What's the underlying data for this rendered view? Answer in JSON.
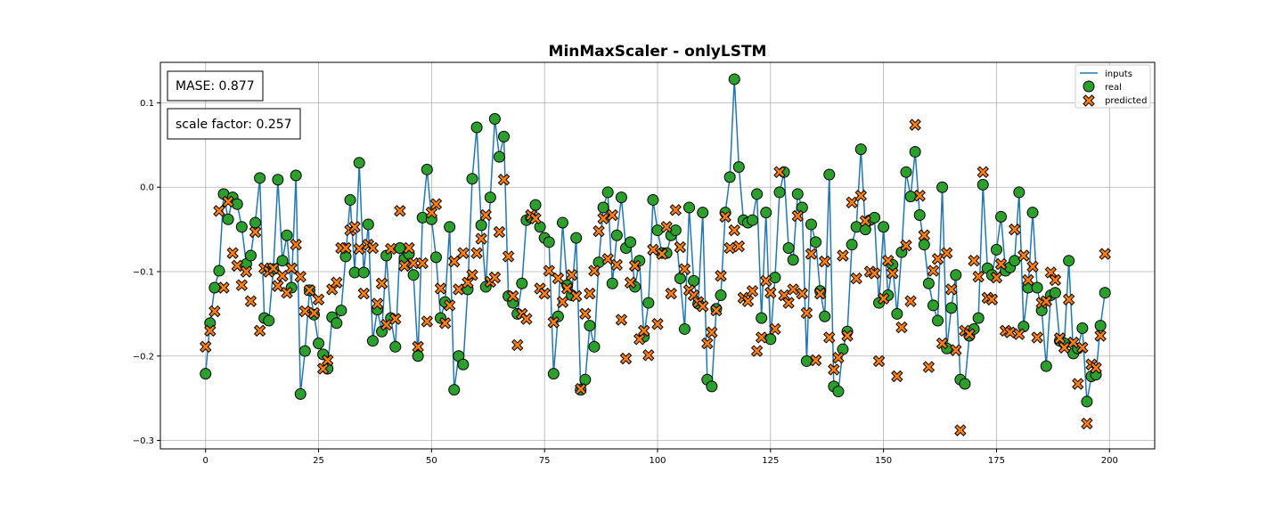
{
  "chart_data": {
    "type": "line",
    "title": "MinMaxScaler - onlyLSTM",
    "xlabel": "",
    "ylabel": "",
    "xlim": [
      -10,
      210
    ],
    "ylim": [
      -0.31,
      0.148
    ],
    "xticks": [
      0,
      25,
      50,
      75,
      100,
      125,
      150,
      175,
      200
    ],
    "yticks": [
      -0.3,
      -0.2,
      -0.1,
      0.0,
      0.1
    ],
    "xtick_labels": [
      "0",
      "25",
      "50",
      "75",
      "100",
      "125",
      "150",
      "175",
      "200"
    ],
    "ytick_labels": [
      "−0.3",
      "−0.2",
      "−0.1",
      "0.0",
      "0.1"
    ],
    "grid": true,
    "legend_position": "top-right",
    "annotations": [
      {
        "text": "MASE: 0.877"
      },
      {
        "text": "scale factor: 0.257"
      }
    ],
    "series": [
      {
        "name": "inputs",
        "kind": "line",
        "color": "#1f77b4",
        "values": [
          -0.221,
          -0.161,
          -0.119,
          -0.099,
          -0.008,
          -0.038,
          -0.012,
          -0.02,
          -0.047,
          -0.091,
          -0.081,
          -0.042,
          0.011,
          -0.155,
          -0.158,
          -0.097,
          0.009,
          -0.087,
          -0.057,
          -0.119,
          0.014,
          -0.245,
          -0.194,
          -0.122,
          -0.151,
          -0.185,
          -0.198,
          -0.215,
          -0.154,
          -0.161,
          -0.146,
          -0.082,
          -0.015,
          -0.101,
          0.029,
          -0.101,
          -0.044,
          -0.182,
          -0.145,
          -0.171,
          -0.081,
          -0.155,
          -0.189,
          -0.072,
          -0.085,
          -0.079,
          -0.104,
          -0.2,
          -0.036,
          0.021,
          -0.038,
          -0.083,
          -0.155,
          -0.136,
          -0.047,
          -0.24,
          -0.2,
          -0.21,
          -0.121,
          0.01,
          0.071,
          -0.045,
          -0.118,
          -0.012,
          0.081,
          0.036,
          0.06,
          -0.129,
          -0.137,
          -0.15,
          -0.114,
          -0.039,
          -0.036,
          -0.021,
          -0.047,
          -0.06,
          -0.065,
          -0.221,
          -0.153,
          -0.042,
          -0.116,
          -0.128,
          -0.06,
          -0.24,
          -0.228,
          -0.164,
          -0.189,
          -0.089,
          -0.024,
          -0.006,
          -0.114,
          -0.057,
          -0.012,
          -0.072,
          -0.065,
          -0.118,
          -0.087,
          -0.177,
          -0.137,
          -0.015,
          -0.051,
          -0.078,
          -0.078,
          -0.057,
          -0.051,
          -0.108,
          -0.168,
          -0.024,
          -0.111,
          -0.138,
          -0.03,
          -0.228,
          -0.236,
          -0.144,
          -0.128,
          -0.03,
          0.012,
          0.128,
          0.024,
          -0.039,
          -0.042,
          -0.039,
          -0.008,
          -0.155,
          -0.03,
          -0.18,
          -0.107,
          -0.006,
          0.018,
          -0.072,
          -0.086,
          -0.008,
          -0.024,
          -0.206,
          -0.044,
          -0.065,
          -0.123,
          -0.153,
          0.015,
          -0.236,
          -0.242,
          -0.192,
          -0.171,
          -0.068,
          -0.047,
          0.045,
          -0.05,
          -0.039,
          -0.036,
          -0.137,
          -0.047,
          -0.128,
          -0.092,
          -0.15,
          -0.077,
          0.018,
          -0.011,
          0.042,
          -0.033,
          -0.068,
          -0.114,
          -0.14,
          -0.158,
          0.0,
          -0.191,
          -0.143,
          -0.104,
          -0.228,
          -0.233,
          -0.176,
          -0.168,
          -0.155,
          0.003,
          -0.096,
          -0.104,
          -0.074,
          -0.035,
          -0.099,
          -0.095,
          -0.087,
          -0.006,
          -0.165,
          -0.119,
          -0.03,
          -0.119,
          -0.146,
          -0.212,
          -0.128,
          -0.125,
          -0.182,
          -0.185,
          -0.087,
          -0.197,
          -0.191,
          -0.167,
          -0.254,
          -0.224,
          -0.222,
          -0.164,
          -0.125
        ]
      },
      {
        "name": "real",
        "kind": "scatter",
        "marker": "circle",
        "color": "#2ca02c",
        "values": [
          -0.221,
          -0.161,
          -0.119,
          -0.099,
          -0.008,
          -0.038,
          -0.012,
          -0.02,
          -0.047,
          -0.091,
          -0.081,
          -0.042,
          0.011,
          -0.155,
          -0.158,
          -0.097,
          0.009,
          -0.087,
          -0.057,
          -0.119,
          0.014,
          -0.245,
          -0.194,
          -0.122,
          -0.151,
          -0.185,
          -0.198,
          -0.215,
          -0.154,
          -0.161,
          -0.146,
          -0.082,
          -0.015,
          -0.101,
          0.029,
          -0.101,
          -0.044,
          -0.182,
          -0.145,
          -0.171,
          -0.081,
          -0.155,
          -0.189,
          -0.072,
          -0.085,
          -0.079,
          -0.104,
          -0.2,
          -0.036,
          0.021,
          -0.038,
          -0.083,
          -0.155,
          -0.136,
          -0.047,
          -0.24,
          -0.2,
          -0.21,
          -0.121,
          0.01,
          0.071,
          -0.045,
          -0.118,
          -0.012,
          0.081,
          0.036,
          0.06,
          -0.129,
          -0.137,
          -0.15,
          -0.114,
          -0.039,
          -0.036,
          -0.021,
          -0.047,
          -0.06,
          -0.065,
          -0.221,
          -0.153,
          -0.042,
          -0.116,
          -0.128,
          -0.06,
          -0.24,
          -0.228,
          -0.164,
          -0.189,
          -0.089,
          -0.024,
          -0.006,
          -0.114,
          -0.057,
          -0.012,
          -0.072,
          -0.065,
          -0.118,
          -0.087,
          -0.177,
          -0.137,
          -0.015,
          -0.051,
          -0.078,
          -0.078,
          -0.057,
          -0.051,
          -0.108,
          -0.168,
          -0.024,
          -0.111,
          -0.138,
          -0.03,
          -0.228,
          -0.236,
          -0.144,
          -0.128,
          -0.03,
          0.012,
          0.128,
          0.024,
          -0.039,
          -0.042,
          -0.039,
          -0.008,
          -0.155,
          -0.03,
          -0.18,
          -0.107,
          -0.006,
          0.018,
          -0.072,
          -0.086,
          -0.008,
          -0.024,
          -0.206,
          -0.044,
          -0.065,
          -0.123,
          -0.153,
          0.015,
          -0.236,
          -0.242,
          -0.192,
          -0.171,
          -0.068,
          -0.047,
          0.045,
          -0.05,
          -0.039,
          -0.036,
          -0.137,
          -0.047,
          -0.128,
          -0.092,
          -0.15,
          -0.077,
          0.018,
          -0.011,
          0.042,
          -0.033,
          -0.068,
          -0.114,
          -0.14,
          -0.158,
          0.0,
          -0.191,
          -0.143,
          -0.104,
          -0.228,
          -0.233,
          -0.176,
          -0.168,
          -0.155,
          0.003,
          -0.096,
          -0.104,
          -0.074,
          -0.035,
          -0.099,
          -0.095,
          -0.087,
          -0.006,
          -0.165,
          -0.119,
          -0.03,
          -0.119,
          -0.146,
          -0.212,
          -0.128,
          -0.125,
          -0.182,
          -0.185,
          -0.087,
          -0.197,
          -0.191,
          -0.167,
          -0.254,
          -0.224,
          -0.222,
          -0.164,
          -0.125
        ]
      },
      {
        "name": "predicted",
        "kind": "scatter",
        "marker": "x",
        "color": "#ff7f0e",
        "values": [
          -0.189,
          -0.17,
          -0.147,
          -0.028,
          -0.119,
          -0.017,
          -0.078,
          -0.093,
          -0.116,
          -0.1,
          -0.135,
          -0.053,
          -0.17,
          -0.096,
          -0.1,
          -0.096,
          -0.117,
          -0.105,
          -0.125,
          -0.096,
          -0.068,
          -0.106,
          -0.147,
          -0.122,
          -0.149,
          -0.133,
          -0.215,
          -0.205,
          -0.121,
          -0.113,
          -0.072,
          -0.072,
          -0.051,
          -0.047,
          -0.073,
          -0.126,
          -0.068,
          -0.072,
          -0.138,
          -0.114,
          -0.163,
          -0.073,
          -0.156,
          -0.028,
          -0.093,
          -0.072,
          -0.09,
          -0.189,
          -0.09,
          -0.159,
          -0.03,
          -0.02,
          -0.12,
          -0.161,
          -0.14,
          -0.088,
          -0.121,
          -0.078,
          -0.113,
          -0.104,
          -0.078,
          -0.061,
          -0.033,
          -0.112,
          -0.107,
          -0.053,
          0.009,
          -0.082,
          -0.129,
          -0.187,
          -0.15,
          -0.156,
          -0.033,
          -0.037,
          -0.12,
          -0.126,
          -0.099,
          -0.16,
          -0.108,
          -0.136,
          -0.12,
          -0.104,
          -0.129,
          -0.239,
          -0.15,
          -0.126,
          -0.099,
          -0.052,
          -0.037,
          -0.085,
          -0.033,
          -0.092,
          -0.157,
          -0.203,
          -0.113,
          -0.093,
          -0.18,
          -0.17,
          -0.199,
          -0.074,
          -0.162,
          -0.079,
          -0.047,
          -0.126,
          -0.027,
          -0.071,
          -0.097,
          -0.122,
          -0.128,
          -0.136,
          -0.141,
          -0.185,
          -0.172,
          -0.146,
          -0.105,
          -0.035,
          -0.072,
          -0.051,
          -0.07,
          -0.131,
          -0.135,
          -0.123,
          -0.194,
          -0.178,
          -0.111,
          -0.125,
          -0.168,
          0.018,
          -0.128,
          -0.137,
          -0.121,
          -0.034,
          -0.126,
          -0.149,
          -0.079,
          -0.205,
          -0.126,
          -0.088,
          -0.178,
          -0.216,
          -0.202,
          -0.081,
          -0.176,
          -0.018,
          -0.108,
          -0.01,
          -0.04,
          -0.1,
          -0.102,
          -0.206,
          -0.132,
          -0.087,
          -0.102,
          -0.224,
          -0.166,
          -0.069,
          -0.135,
          0.074,
          -0.01,
          -0.057,
          -0.213,
          -0.099,
          -0.085,
          -0.185,
          -0.078,
          -0.121,
          -0.193,
          -0.288,
          -0.17,
          -0.174,
          -0.087,
          -0.106,
          0.018,
          -0.131,
          -0.133,
          -0.107,
          -0.091,
          -0.17,
          -0.172,
          -0.05,
          -0.174,
          -0.081,
          -0.11,
          -0.094,
          -0.178,
          -0.137,
          -0.135,
          -0.101,
          -0.11,
          -0.179,
          -0.19,
          -0.133,
          -0.184,
          -0.233,
          -0.19,
          -0.28,
          -0.21,
          -0.214,
          -0.176,
          -0.079
        ]
      }
    ]
  }
}
